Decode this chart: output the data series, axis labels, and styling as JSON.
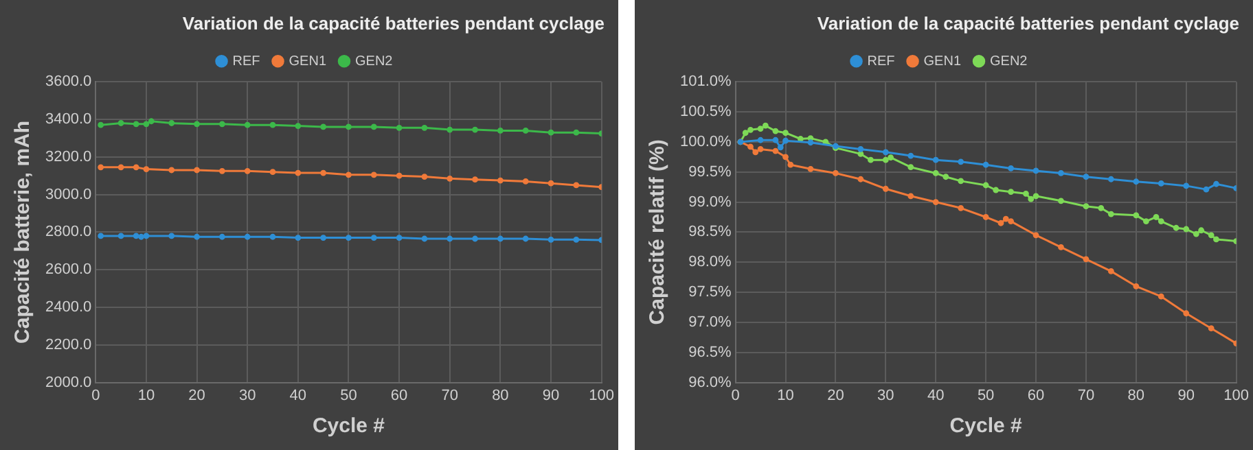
{
  "chart_data": [
    {
      "type": "line",
      "title": "Variation de la capacité batteries pendant cyclage",
      "xlabel": "Cycle #",
      "ylabel": "Capacité batterie, mAh",
      "xlim": [
        0,
        100
      ],
      "xticks": [
        0,
        10,
        20,
        30,
        40,
        50,
        60,
        70,
        80,
        90,
        100
      ],
      "ylim": [
        2000,
        3600
      ],
      "yticks": [
        {
          "value": 2000,
          "label": "2000.0"
        },
        {
          "value": 2200,
          "label": "2200.0"
        },
        {
          "value": 2400,
          "label": "2400.0"
        },
        {
          "value": 2600,
          "label": "2600.0"
        },
        {
          "value": 2800,
          "label": "2800.0"
        },
        {
          "value": 3000,
          "label": "3000.0"
        },
        {
          "value": 3200,
          "label": "3200.0"
        },
        {
          "value": 3400,
          "label": "3400.0"
        },
        {
          "value": 3600,
          "label": "3600.0"
        }
      ],
      "grid": true,
      "legend": "top",
      "marker": "circle",
      "line_style": "solid",
      "series": [
        {
          "name": "REF",
          "color": "#2e8fd6",
          "x": [
            1,
            5,
            8,
            9,
            10,
            15,
            20,
            25,
            30,
            35,
            40,
            45,
            50,
            55,
            60,
            65,
            70,
            75,
            80,
            85,
            90,
            95,
            100
          ],
          "values": [
            2780,
            2780,
            2780,
            2775,
            2780,
            2780,
            2775,
            2775,
            2775,
            2775,
            2770,
            2770,
            2770,
            2770,
            2770,
            2765,
            2765,
            2765,
            2765,
            2765,
            2760,
            2760,
            2758
          ]
        },
        {
          "name": "GEN1",
          "color": "#f07a3a",
          "x": [
            1,
            5,
            8,
            10,
            15,
            20,
            25,
            30,
            35,
            40,
            45,
            50,
            55,
            60,
            65,
            70,
            75,
            80,
            85,
            90,
            95,
            100
          ],
          "values": [
            3145,
            3145,
            3145,
            3135,
            3130,
            3130,
            3125,
            3125,
            3120,
            3115,
            3115,
            3105,
            3105,
            3100,
            3095,
            3085,
            3080,
            3075,
            3070,
            3060,
            3050,
            3040
          ]
        },
        {
          "name": "GEN2",
          "color": "#3cb94a",
          "x": [
            1,
            5,
            8,
            10,
            11,
            15,
            20,
            25,
            30,
            35,
            40,
            45,
            50,
            55,
            60,
            65,
            70,
            75,
            80,
            85,
            90,
            95,
            100
          ],
          "values": [
            3370,
            3380,
            3375,
            3375,
            3390,
            3380,
            3375,
            3375,
            3370,
            3370,
            3365,
            3360,
            3360,
            3360,
            3355,
            3355,
            3345,
            3345,
            3340,
            3340,
            3330,
            3330,
            3325
          ]
        }
      ]
    },
    {
      "type": "line",
      "title": "Variation de la capacité batteries pendant cyclage",
      "xlabel": "Cycle #",
      "ylabel": "Capacité relatif (%)",
      "xlim": [
        0,
        100
      ],
      "xticks": [
        0,
        10,
        20,
        30,
        40,
        50,
        60,
        70,
        80,
        90,
        100
      ],
      "ylim": [
        96,
        101
      ],
      "yticks": [
        {
          "value": 96,
          "label": "96.0%"
        },
        {
          "value": 96.5,
          "label": "96.5%"
        },
        {
          "value": 97,
          "label": "97.0%"
        },
        {
          "value": 97.5,
          "label": "97.5%"
        },
        {
          "value": 98,
          "label": "98.0%"
        },
        {
          "value": 98.5,
          "label": "98.5%"
        },
        {
          "value": 99,
          "label": "99.0%"
        },
        {
          "value": 99.5,
          "label": "99.5%"
        },
        {
          "value": 100,
          "label": "100.0%"
        },
        {
          "value": 100.5,
          "label": "100.5%"
        },
        {
          "value": 101,
          "label": "101.0%"
        }
      ],
      "grid": true,
      "legend": "top",
      "marker": "circle",
      "line_style": "solid",
      "series": [
        {
          "name": "REF",
          "color": "#2e8fd6",
          "x": [
            1,
            5,
            8,
            9,
            10,
            15,
            20,
            25,
            30,
            35,
            40,
            45,
            50,
            55,
            60,
            65,
            70,
            75,
            80,
            85,
            90,
            94,
            96,
            100
          ],
          "values": [
            100.0,
            100.03,
            100.03,
            99.91,
            100.02,
            99.99,
            99.93,
            99.88,
            99.83,
            99.77,
            99.7,
            99.67,
            99.62,
            99.56,
            99.52,
            99.48,
            99.42,
            99.38,
            99.34,
            99.31,
            99.27,
            99.21,
            99.3,
            99.23
          ]
        },
        {
          "name": "GEN1",
          "color": "#f07a3a",
          "x": [
            1,
            3,
            4,
            5,
            8,
            10,
            11,
            15,
            20,
            25,
            30,
            35,
            40,
            45,
            50,
            53,
            54,
            55,
            60,
            65,
            70,
            75,
            80,
            85,
            90,
            95,
            100
          ],
          "values": [
            100.0,
            99.92,
            99.83,
            99.88,
            99.85,
            99.75,
            99.62,
            99.55,
            99.48,
            99.38,
            99.22,
            99.1,
            99.0,
            98.9,
            98.75,
            98.65,
            98.72,
            98.68,
            98.45,
            98.25,
            98.05,
            97.85,
            97.6,
            97.43,
            97.15,
            96.9,
            96.65
          ]
        },
        {
          "name": "GEN2",
          "color": "#7ed957",
          "x": [
            1,
            2,
            3,
            5,
            6,
            8,
            10,
            13,
            15,
            18,
            20,
            25,
            27,
            30,
            31,
            35,
            40,
            42,
            45,
            50,
            52,
            55,
            58,
            59,
            60,
            65,
            70,
            73,
            75,
            80,
            82,
            84,
            85,
            88,
            90,
            92,
            93,
            95,
            96,
            100
          ],
          "values": [
            100.0,
            100.15,
            100.2,
            100.22,
            100.27,
            100.18,
            100.15,
            100.05,
            100.06,
            100.0,
            99.9,
            99.8,
            99.7,
            99.7,
            99.74,
            99.58,
            99.48,
            99.42,
            99.35,
            99.28,
            99.2,
            99.17,
            99.14,
            99.05,
            99.1,
            99.02,
            98.93,
            98.9,
            98.8,
            98.78,
            98.68,
            98.75,
            98.68,
            98.57,
            98.55,
            98.47,
            98.53,
            98.45,
            98.38,
            98.35
          ]
        }
      ]
    }
  ]
}
